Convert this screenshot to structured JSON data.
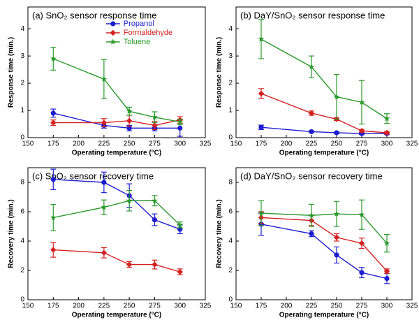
{
  "chart_data": [
    {
      "type": "line",
      "title": "(a) SnO₂ sensor response time",
      "x_label": "Operating temperature (°C)",
      "y_label": "Response time (min.)",
      "x": [
        175,
        225,
        250,
        275,
        300
      ],
      "xlim": [
        150,
        325
      ],
      "xticks": [
        150,
        175,
        200,
        225,
        250,
        275,
        300,
        325
      ],
      "ylim": [
        0,
        4.8
      ],
      "yticks": [
        0,
        1,
        2,
        3,
        4
      ],
      "legend": "upper center",
      "series": [
        {
          "name": "Propanol",
          "color": "#1c1cd0",
          "marker": "circle",
          "values": [
            0.9,
            0.45,
            0.35,
            0.35,
            0.35
          ],
          "errors": [
            0.15,
            0.1,
            0.1,
            0.1,
            0.3
          ]
        },
        {
          "name": "Formaldehyde",
          "color": "#d42020",
          "marker": "diamond",
          "values": [
            0.55,
            0.55,
            0.62,
            0.45,
            0.65
          ],
          "errors": [
            0.1,
            0.15,
            0.2,
            0.15,
            0.12
          ]
        },
        {
          "name": "Toluene",
          "color": "#2a9a2a",
          "marker": "star",
          "values": [
            2.9,
            2.15,
            0.97,
            0.75,
            0.58
          ],
          "errors": [
            0.42,
            0.72,
            0.15,
            0.2,
            0.1
          ]
        }
      ]
    },
    {
      "type": "line",
      "title": "(b) DaY/SnO₂ sensor response time",
      "x_label": "Operating temperature (°C)",
      "y_label": "Response time (min.)",
      "x": [
        175,
        225,
        250,
        275,
        300
      ],
      "xlim": [
        150,
        325
      ],
      "xticks": [
        150,
        175,
        200,
        225,
        250,
        275,
        300,
        325
      ],
      "ylim": [
        0,
        4.8
      ],
      "yticks": [
        0,
        1,
        2,
        3,
        4
      ],
      "series": [
        {
          "name": "Propanol",
          "color": "#1c1cd0",
          "marker": "circle",
          "values": [
            0.38,
            0.22,
            0.18,
            0.15,
            0.15
          ],
          "errors": [
            0.08,
            0.03,
            0.03,
            0.03,
            0.03
          ]
        },
        {
          "name": "Formaldehyde",
          "color": "#d42020",
          "marker": "diamond",
          "values": [
            1.62,
            0.9,
            0.68,
            0.25,
            0.18
          ],
          "errors": [
            0.18,
            0.08,
            0.05,
            0.05,
            0.05
          ]
        },
        {
          "name": "Toluene",
          "color": "#2a9a2a",
          "marker": "star",
          "values": [
            3.62,
            2.6,
            1.5,
            1.3,
            0.7
          ],
          "errors": [
            0.72,
            0.4,
            0.82,
            0.8,
            0.18
          ]
        }
      ]
    },
    {
      "type": "line",
      "title": "(c) SnO₂ sensor recovery time",
      "x_label": "Operating temperature (°C)",
      "y_label": "Recovery time (min.)",
      "x": [
        175,
        225,
        250,
        275,
        300
      ],
      "xlim": [
        150,
        325
      ],
      "xticks": [
        150,
        175,
        200,
        225,
        250,
        275,
        300,
        325
      ],
      "ylim": [
        0,
        9
      ],
      "yticks": [
        0,
        2,
        4,
        6,
        8
      ],
      "series": [
        {
          "name": "Propanol",
          "color": "#1c1cd0",
          "marker": "circle",
          "values": [
            8.2,
            8.0,
            7.1,
            5.45,
            4.8
          ],
          "errors": [
            0.7,
            0.7,
            0.8,
            0.4,
            0.3
          ]
        },
        {
          "name": "Formaldehyde",
          "color": "#d42020",
          "marker": "diamond",
          "values": [
            3.4,
            3.2,
            2.4,
            2.4,
            1.9
          ],
          "errors": [
            0.5,
            0.35,
            0.2,
            0.3,
            0.2
          ]
        },
        {
          "name": "Toluene",
          "color": "#2a9a2a",
          "marker": "star",
          "values": [
            5.6,
            6.3,
            6.75,
            6.75,
            5.1
          ],
          "errors": [
            0.9,
            0.5,
            0.7,
            0.35,
            0.2
          ]
        }
      ]
    },
    {
      "type": "line",
      "title": "(d) DaY/SnO₂ sensor recovery time",
      "x_label": "Operating temperature (°C)",
      "y_label": "Recovery time (min.)",
      "x": [
        175,
        225,
        250,
        275,
        300
      ],
      "xlim": [
        150,
        325
      ],
      "xticks": [
        150,
        175,
        200,
        225,
        250,
        275,
        300,
        325
      ],
      "ylim": [
        0,
        9
      ],
      "yticks": [
        0,
        2,
        4,
        6,
        8
      ],
      "series": [
        {
          "name": "Propanol",
          "color": "#1c1cd0",
          "marker": "circle",
          "values": [
            5.15,
            4.5,
            3.05,
            1.85,
            1.45
          ],
          "errors": [
            0.75,
            0.2,
            0.55,
            0.35,
            0.35
          ]
        },
        {
          "name": "Formaldehyde",
          "color": "#d42020",
          "marker": "diamond",
          "values": [
            5.6,
            5.4,
            4.25,
            3.85,
            1.95
          ],
          "errors": [
            0.4,
            0.35,
            0.25,
            0.35,
            0.15
          ]
        },
        {
          "name": "Toluene",
          "color": "#2a9a2a",
          "marker": "star",
          "values": [
            5.9,
            5.75,
            5.85,
            5.8,
            3.85
          ],
          "errors": [
            0.85,
            0.75,
            0.85,
            1.0,
            0.6
          ]
        }
      ]
    }
  ]
}
